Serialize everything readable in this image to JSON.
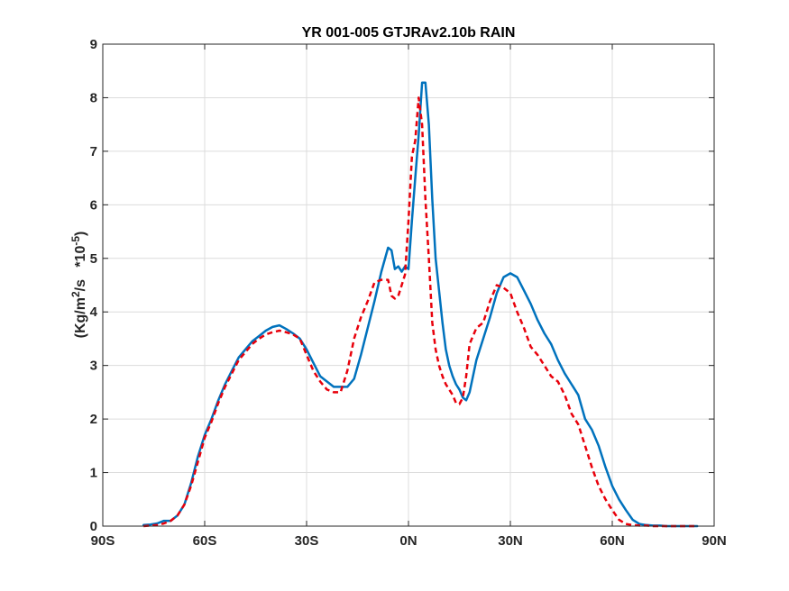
{
  "chart_data": {
    "type": "line",
    "title": "YR 001-005 GTJRAv2.10b RAIN",
    "ylabel": {
      "prefix": "(Kg/m",
      "sup1": "2",
      "mid": "/s   *10",
      "sup2": "-5",
      "suffix": ")"
    },
    "xlabel": "",
    "xlim": [
      -90,
      90
    ],
    "ylim": [
      0,
      9
    ],
    "grid": true,
    "x_ticks": [
      {
        "value": -90,
        "label": "90S"
      },
      {
        "value": -60,
        "label": "60S"
      },
      {
        "value": -30,
        "label": "30S"
      },
      {
        "value": 0,
        "label": "0N"
      },
      {
        "value": 30,
        "label": "30N"
      },
      {
        "value": 60,
        "label": "60N"
      },
      {
        "value": 90,
        "label": "90N"
      }
    ],
    "y_ticks": [
      {
        "value": 0,
        "label": "0"
      },
      {
        "value": 1,
        "label": "1"
      },
      {
        "value": 2,
        "label": "2"
      },
      {
        "value": 3,
        "label": "3"
      },
      {
        "value": 4,
        "label": "4"
      },
      {
        "value": 5,
        "label": "5"
      },
      {
        "value": 6,
        "label": "6"
      },
      {
        "value": 7,
        "label": "7"
      },
      {
        "value": 8,
        "label": "8"
      },
      {
        "value": 9,
        "label": "9"
      }
    ],
    "series": [
      {
        "color": "#0072BD",
        "style": "solid",
        "x": [
          -78,
          -76,
          -74,
          -72,
          -70,
          -68,
          -66,
          -64,
          -62,
          -60,
          -58,
          -56,
          -54,
          -52,
          -50,
          -48,
          -46,
          -44,
          -42,
          -40,
          -38,
          -36,
          -34,
          -32,
          -30,
          -28,
          -26,
          -24,
          -22,
          -20,
          -18,
          -16,
          -14,
          -12,
          -10,
          -8,
          -6,
          -5,
          -4,
          -3,
          -2,
          -1,
          0,
          1,
          2,
          3,
          4,
          5,
          6,
          7,
          8,
          9,
          10,
          11,
          12,
          13,
          14,
          15,
          16,
          17,
          18,
          20,
          22,
          24,
          26,
          28,
          30,
          32,
          34,
          36,
          38,
          40,
          42,
          44,
          46,
          48,
          50,
          52,
          54,
          56,
          58,
          60,
          62,
          64,
          66,
          68,
          70,
          72,
          74,
          76,
          78,
          80,
          82,
          84,
          85
        ],
        "y": [
          0.02,
          0.03,
          0.05,
          0.1,
          0.1,
          0.2,
          0.4,
          0.8,
          1.3,
          1.7,
          2.0,
          2.35,
          2.65,
          2.9,
          3.15,
          3.3,
          3.45,
          3.55,
          3.65,
          3.72,
          3.75,
          3.68,
          3.6,
          3.5,
          3.3,
          3.05,
          2.8,
          2.7,
          2.6,
          2.6,
          2.6,
          2.75,
          3.2,
          3.7,
          4.2,
          4.75,
          5.2,
          5.15,
          4.8,
          4.85,
          4.75,
          4.85,
          4.8,
          5.7,
          6.5,
          7.3,
          8.28,
          8.28,
          7.5,
          6.1,
          5.0,
          4.4,
          3.8,
          3.3,
          3.0,
          2.8,
          2.65,
          2.55,
          2.4,
          2.35,
          2.5,
          3.1,
          3.5,
          3.9,
          4.35,
          4.65,
          4.72,
          4.65,
          4.4,
          4.15,
          3.85,
          3.6,
          3.4,
          3.1,
          2.85,
          2.65,
          2.45,
          2.0,
          1.8,
          1.5,
          1.1,
          0.75,
          0.5,
          0.3,
          0.12,
          0.04,
          0.02,
          0.01,
          0.01,
          0.0,
          0.0,
          0.0,
          0.0,
          0.0,
          0.0
        ]
      },
      {
        "color": "#E8000B",
        "style": "dashed",
        "x": [
          -78,
          -76,
          -74,
          -72,
          -70,
          -68,
          -66,
          -64,
          -62,
          -60,
          -58,
          -56,
          -54,
          -52,
          -50,
          -48,
          -46,
          -44,
          -42,
          -40,
          -38,
          -36,
          -34,
          -32,
          -30,
          -28,
          -26,
          -24,
          -22,
          -20,
          -18,
          -16,
          -14,
          -12,
          -10,
          -8,
          -6,
          -5,
          -4,
          -3,
          -2,
          -1,
          0,
          1,
          2,
          3,
          4,
          5,
          6,
          7,
          8,
          9,
          10,
          11,
          12,
          13,
          14,
          15,
          16,
          17,
          18,
          20,
          22,
          24,
          26,
          28,
          30,
          32,
          34,
          36,
          38,
          40,
          42,
          44,
          46,
          48,
          50,
          52,
          54,
          56,
          58,
          60,
          62,
          64,
          66,
          68,
          70,
          72,
          74,
          76,
          78,
          80,
          82,
          84,
          85
        ],
        "y": [
          0.0,
          0.01,
          0.02,
          0.05,
          0.1,
          0.2,
          0.4,
          0.75,
          1.2,
          1.65,
          1.95,
          2.3,
          2.6,
          2.85,
          3.1,
          3.25,
          3.4,
          3.5,
          3.58,
          3.62,
          3.65,
          3.62,
          3.58,
          3.5,
          3.2,
          2.9,
          2.7,
          2.55,
          2.5,
          2.5,
          2.9,
          3.5,
          3.9,
          4.2,
          4.55,
          4.6,
          4.6,
          4.3,
          4.25,
          4.3,
          4.5,
          4.7,
          5.7,
          6.9,
          7.2,
          8.0,
          7.5,
          6.1,
          5.0,
          3.8,
          3.3,
          3.0,
          2.8,
          2.65,
          2.55,
          2.45,
          2.3,
          2.28,
          2.4,
          2.8,
          3.4,
          3.7,
          3.8,
          4.2,
          4.5,
          4.45,
          4.35,
          4.0,
          3.7,
          3.35,
          3.2,
          3.0,
          2.8,
          2.7,
          2.45,
          2.1,
          1.9,
          1.5,
          1.1,
          0.75,
          0.5,
          0.3,
          0.12,
          0.04,
          0.02,
          0.01,
          0.01,
          0.0,
          0.0,
          0.0,
          0.0,
          0.0,
          0.0,
          0.0,
          0.0
        ]
      }
    ]
  },
  "colors": {
    "axis": "#262626",
    "grid": "#dcdcdc",
    "background": "#ffffff"
  }
}
